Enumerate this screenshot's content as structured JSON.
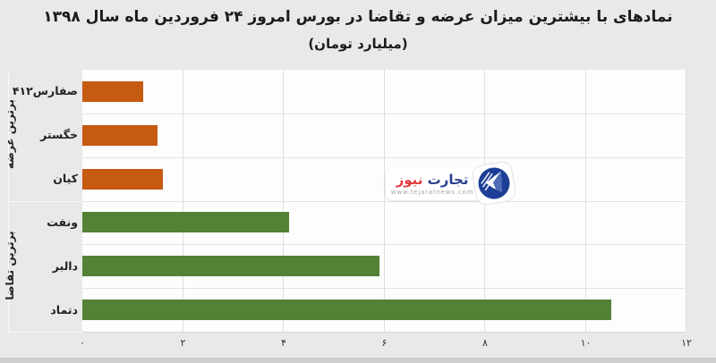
{
  "title": "نمادهای با بیشترین میزان عرضه و تقاضا در بورس امروز ۲۴ فروردین ماه سال ۱۳۹۸",
  "subtitle": "(میلیارد تومان)",
  "watermark": {
    "brand_blue": "تجارت",
    "brand_red": "نیوز",
    "url": "www.tejaratnews.com",
    "blue": "#27408f",
    "red": "#e23b3e",
    "icon_circle_color": "#1d3e96"
  },
  "colors": {
    "background": "#e9e9e9",
    "plot_background": "#fdfdfd",
    "gridline": "#dedede",
    "supply_orange": "#c55a11",
    "demand_green": "#538135",
    "text": "#1b1b1b"
  },
  "chart_data": {
    "type": "bar",
    "orientation": "horizontal",
    "title": "نمادهای با بیشترین میزان عرضه و تقاضا در بورس امروز ۲۴ فروردین ماه سال ۱۳۹۸",
    "subtitle": "(میلیارد تومان)",
    "unit": "میلیارد تومان",
    "xlim": [
      0,
      12
    ],
    "grid": true,
    "x_ticks": [
      {
        "label": "۰",
        "value": 0
      },
      {
        "label": "۲",
        "value": 2
      },
      {
        "label": "۴",
        "value": 4
      },
      {
        "label": "۶",
        "value": 6
      },
      {
        "label": "۸",
        "value": 8
      },
      {
        "label": "۱۰",
        "value": 10
      },
      {
        "label": "۱۲",
        "value": 12
      }
    ],
    "groups": [
      {
        "label": "برترین عرضه",
        "color": "#c55a11",
        "items": [
          {
            "name": "صفارس۴۱۲",
            "value": 1.2
          },
          {
            "name": "خگستر",
            "value": 1.5
          },
          {
            "name": "کیان",
            "value": 1.6
          }
        ]
      },
      {
        "label": "برترین تقاضا",
        "color": "#538135",
        "items": [
          {
            "name": "ونفت",
            "value": 4.1
          },
          {
            "name": "دالبر",
            "value": 5.9
          },
          {
            "name": "دتماد",
            "value": 10.5
          }
        ]
      }
    ]
  }
}
